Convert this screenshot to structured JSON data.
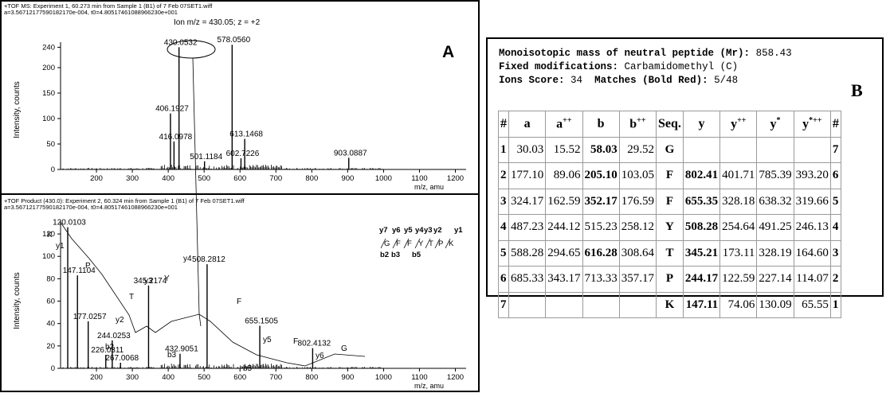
{
  "panel_a": {
    "header1": "+TOF MS: Experiment 1, 60.273 min from Sample 1 (B1) of 7 Feb 07SET1.wiff",
    "header2": "a=3.56712177590182170e-004, t0=4.80517461088966230e+001",
    "ion_label": "Ion m/z = 430.05; z = +2",
    "letter": "A",
    "ylabel": "Intensity, counts",
    "xlabel": "m/z, amu"
  },
  "panel_b_spectrum": {
    "header1": "+TOF Product (430.0): Experiment 2, 60.324 min from Sample 1 (B1) of 7 Feb 07SET1.wiff",
    "header2": "a=3.56712177590182170e-004, t0=4.80517461088966230e+001",
    "ylabel": "Intensity, counts",
    "xlabel": "m/z, amu",
    "sequence_top": [
      "y7",
      "y6",
      "y5",
      "y4",
      "y3",
      "y2",
      "y1"
    ],
    "sequence": [
      "G",
      "F",
      "F",
      "Y",
      "T",
      "P",
      "K"
    ],
    "sequence_bottom": [
      "b2",
      "b3",
      "b5"
    ]
  },
  "chart_data": [
    {
      "type": "bar",
      "title": "+TOF MS: Experiment 1, 60.273 min from Sample 1 (B1) of 7 Feb 07SET1.wiff",
      "xlabel": "m/z, amu",
      "ylabel": "Intensity, counts",
      "xlim": [
        100,
        1230
      ],
      "ylim": [
        0,
        250
      ],
      "x_ticks": [
        200,
        300,
        400,
        500,
        600,
        700,
        800,
        900,
        1000,
        1100,
        1200
      ],
      "y_ticks": [
        0,
        50,
        100,
        150,
        200,
        240
      ],
      "peaks": [
        {
          "x": 406.1927,
          "y": 110,
          "label": "406.1927"
        },
        {
          "x": 416.0978,
          "y": 55,
          "label": "416.0978"
        },
        {
          "x": 430.0532,
          "y": 240,
          "label": "430.0532"
        },
        {
          "x": 501.1184,
          "y": 16,
          "label": "501.1184"
        },
        {
          "x": 578.056,
          "y": 245,
          "label": "578.0560"
        },
        {
          "x": 602.7226,
          "y": 22,
          "label": "602.7226"
        },
        {
          "x": 613.1468,
          "y": 60,
          "label": "613.1468"
        },
        {
          "x": 903.0887,
          "y": 23,
          "label": "903.0887"
        }
      ]
    },
    {
      "type": "bar",
      "title": "+TOF Product (430.0): Experiment 2, 60.324 min from Sample 1 (B1) of 7 Feb 07SET1.wiff",
      "xlabel": "m/z, amu",
      "ylabel": "Intensity, counts",
      "xlim": [
        100,
        1230
      ],
      "ylim": [
        0,
        130
      ],
      "x_ticks": [
        200,
        300,
        400,
        500,
        600,
        700,
        800,
        900,
        1000,
        1100,
        1200
      ],
      "y_ticks": [
        0,
        20,
        40,
        60,
        80,
        100,
        120
      ],
      "peaks": [
        {
          "x": 120.0103,
          "y": 126,
          "label": "120.0103"
        },
        {
          "x": 147.1104,
          "y": 83,
          "label": "147.1104"
        },
        {
          "x": 177.0257,
          "y": 42,
          "label": "177.0257"
        },
        {
          "x": 226.0311,
          "y": 12,
          "label": "226.0311"
        },
        {
          "x": 244.0253,
          "y": 25,
          "label": "244.0253"
        },
        {
          "x": 267.0068,
          "y": 5,
          "label": "267.0068"
        },
        {
          "x": 345.2174,
          "y": 74,
          "label": "345.2174"
        },
        {
          "x": 432.9051,
          "y": 13,
          "label": "432.9051"
        },
        {
          "x": 508.2812,
          "y": 93,
          "label": "508.2812"
        },
        {
          "x": 655.1505,
          "y": 38,
          "label": "655.1505"
        },
        {
          "x": 802.4132,
          "y": 18,
          "label": "802.4132"
        }
      ],
      "ion_labels": [
        "K",
        "y1",
        "P",
        "y2",
        "T",
        "y3",
        "Y",
        "y4",
        "F",
        "y5",
        "F",
        "y6",
        "G",
        "b2",
        "b3",
        "b5"
      ]
    }
  ],
  "panel_b": {
    "line1_label": "Monoisotopic mass of neutral peptide (Mr):",
    "line1_value": "858.43",
    "line2_label": "Fixed modifications:",
    "line2_value": "Carbamidomethyl (C)",
    "line3_label1": "Ions Score:",
    "line3_value1": "34",
    "line3_label2": "Matches (Bold Red):",
    "line3_value2": "5/48",
    "letter": "B",
    "columns": [
      "#",
      "a",
      "a++",
      "b",
      "b++",
      "Seq.",
      "y",
      "y++",
      "y*",
      "y*++",
      "#"
    ],
    "rows": [
      [
        "1",
        "30.03",
        "15.52",
        "58.03",
        "29.52",
        "G",
        "",
        "",
        "",
        "",
        "7"
      ],
      [
        "2",
        "177.10",
        "89.06",
        "205.10",
        "103.05",
        "F",
        "802.41",
        "401.71",
        "785.39",
        "393.20",
        "6"
      ],
      [
        "3",
        "324.17",
        "162.59",
        "352.17",
        "176.59",
        "F",
        "655.35",
        "328.18",
        "638.32",
        "319.66",
        "5"
      ],
      [
        "4",
        "487.23",
        "244.12",
        "515.23",
        "258.12",
        "Y",
        "508.28",
        "254.64",
        "491.25",
        "246.13",
        "4"
      ],
      [
        "5",
        "588.28",
        "294.65",
        "616.28",
        "308.64",
        "T",
        "345.21",
        "173.11",
        "328.19",
        "164.60",
        "3"
      ],
      [
        "6",
        "685.33",
        "343.17",
        "713.33",
        "357.17",
        "P",
        "244.17",
        "122.59",
        "227.14",
        "114.07",
        "2"
      ],
      [
        "7",
        "",
        "",
        "",
        "",
        "K",
        "147.11",
        "74.06",
        "130.09",
        "65.55",
        "1"
      ]
    ],
    "bold": [
      [
        0,
        3
      ],
      [
        1,
        3
      ],
      [
        1,
        6
      ],
      [
        2,
        3
      ],
      [
        2,
        6
      ],
      [
        3,
        6
      ],
      [
        4,
        3
      ],
      [
        4,
        6
      ],
      [
        5,
        6
      ],
      [
        6,
        6
      ]
    ]
  }
}
